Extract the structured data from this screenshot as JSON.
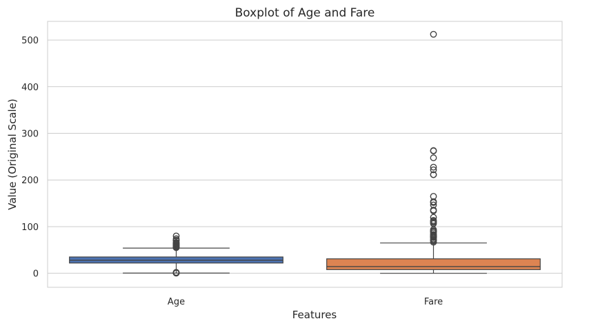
{
  "chart_data": {
    "type": "boxplot",
    "title": "Boxplot of Age and Fare",
    "xlabel": "Features",
    "ylabel": "Value (Original Scale)",
    "ylim": [
      -30,
      540
    ],
    "yticks": [
      0,
      100,
      200,
      300,
      400,
      500
    ],
    "grid": true,
    "categories": [
      "Age",
      "Fare"
    ],
    "boxes": [
      {
        "name": "Age",
        "color": "#4c72b0",
        "whisker_low": 0.42,
        "q1": 22,
        "median": 28,
        "q3": 35,
        "whisker_high": 54,
        "outliers": [
          0.42,
          0.67,
          0.75,
          0.83,
          0.92,
          1,
          2,
          55,
          55.5,
          56,
          57,
          58,
          59,
          60,
          61,
          62,
          63,
          64,
          65,
          66,
          70,
          70.5,
          71,
          74,
          80
        ]
      },
      {
        "name": "Fare",
        "color": "#dd8452",
        "whisker_low": 0,
        "q1": 7.9,
        "median": 14.45,
        "q3": 31,
        "whisker_high": 65,
        "outliers": [
          66.6,
          69.3,
          71.3,
          73.5,
          76.7,
          77.3,
          78.3,
          79.2,
          80,
          82.2,
          83.2,
          86.5,
          89.1,
          90,
          91.1,
          93.5,
          106.4,
          108.9,
          110.9,
          113.3,
          120,
          133.7,
          135.6,
          146.5,
          151.6,
          153.5,
          164.9,
          211.3,
          211.5,
          221.8,
          227.5,
          247.5,
          262.4,
          263,
          512.3
        ]
      }
    ]
  }
}
